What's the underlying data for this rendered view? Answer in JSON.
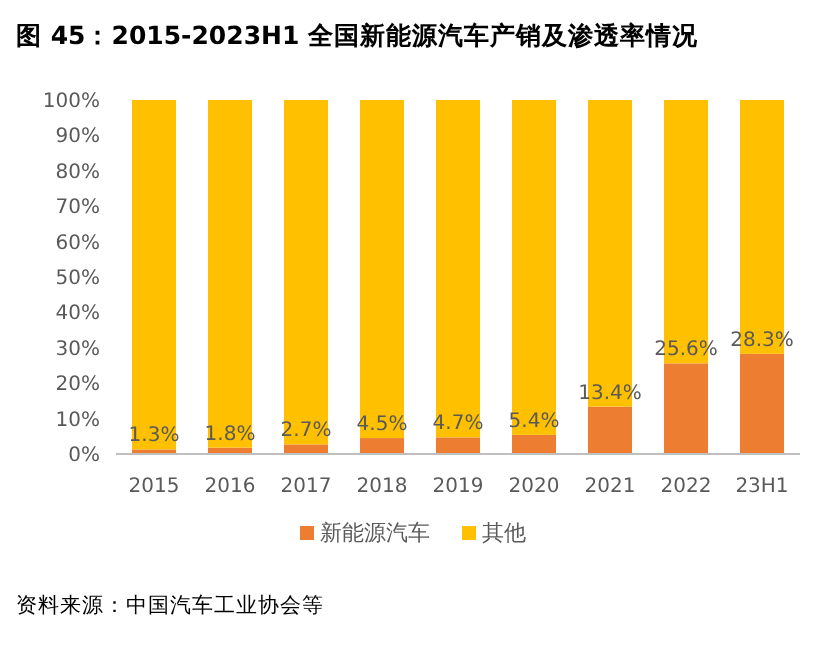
{
  "chart_data": {
    "type": "bar",
    "stacked": true,
    "title": "图 45：2015-2023H1 全国新能源汽车产销及渗透率情况",
    "categories": [
      "2015",
      "2016",
      "2017",
      "2018",
      "2019",
      "2020",
      "2021",
      "2022",
      "23H1"
    ],
    "series": [
      {
        "name": "新能源汽车",
        "color": "#ed7d31",
        "values": [
          1.3,
          1.8,
          2.7,
          4.5,
          4.7,
          5.4,
          13.4,
          25.6,
          28.3
        ],
        "value_labels": [
          "1.3%",
          "1.8%",
          "2.7%",
          "4.5%",
          "4.7%",
          "5.4%",
          "13.4%",
          "25.6%",
          "28.3%"
        ]
      },
      {
        "name": "其他",
        "color": "#ffc000",
        "values": [
          98.7,
          98.2,
          97.3,
          95.5,
          95.3,
          94.6,
          86.6,
          74.4,
          71.7
        ]
      }
    ],
    "ylim": [
      0,
      100
    ],
    "yticks": [
      {
        "value": 0,
        "label": "0%"
      },
      {
        "value": 10,
        "label": "10%"
      },
      {
        "value": 20,
        "label": "20%"
      },
      {
        "value": 30,
        "label": "30%"
      },
      {
        "value": 40,
        "label": "40%"
      },
      {
        "value": 50,
        "label": "50%"
      },
      {
        "value": 60,
        "label": "60%"
      },
      {
        "value": 70,
        "label": "70%"
      },
      {
        "value": 80,
        "label": "80%"
      },
      {
        "value": 90,
        "label": "90%"
      },
      {
        "value": 100,
        "label": "100%"
      }
    ],
    "legend": "bottom",
    "grid": false,
    "annotations": [
      "资料来源：中国汽车工业协会等"
    ]
  }
}
